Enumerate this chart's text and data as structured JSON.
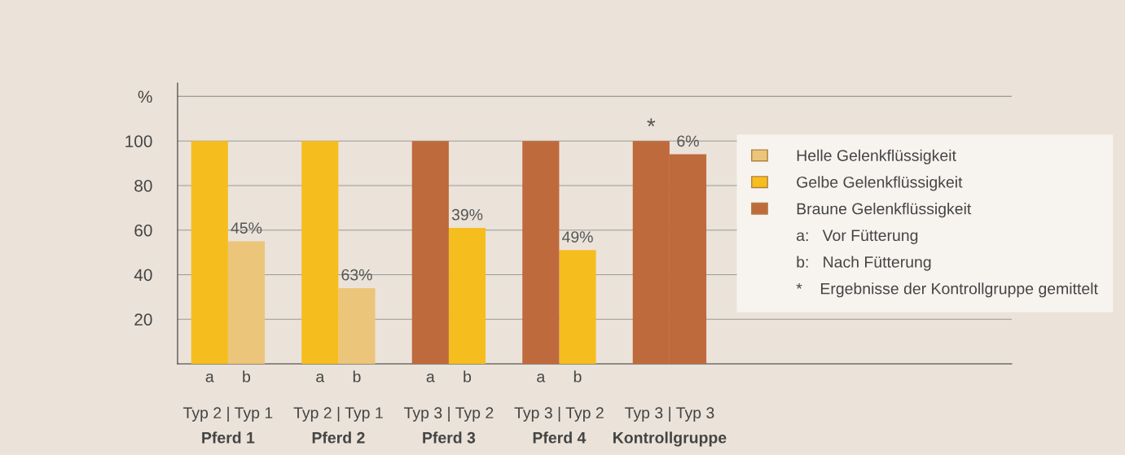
{
  "chart_data": {
    "type": "bar",
    "categories": [
      "a",
      "b",
      "a",
      "b",
      "a",
      "b",
      "a",
      "b",
      null,
      null
    ],
    "series": [
      {
        "name": "Helle Gelenkflüssigkeit",
        "color": "#ebc57a",
        "values": [
          null,
          55,
          null,
          34,
          null,
          null,
          null,
          null,
          null,
          null
        ]
      },
      {
        "name": "Gelbe Gelenkflüssigkeit",
        "color": "#f6bd1e",
        "values": [
          100,
          null,
          100,
          null,
          null,
          61,
          null,
          51,
          null,
          null
        ]
      },
      {
        "name": "Braune Gelenkflüssigkeit",
        "color": "#bf6a3c",
        "values": [
          null,
          null,
          null,
          null,
          100,
          null,
          100,
          null,
          100,
          94
        ]
      }
    ],
    "ylim": [
      0,
      126
    ],
    "yticks": [
      20,
      40,
      60,
      80,
      100,
      {
        "value": 120,
        "label": "%"
      }
    ],
    "grid": "y",
    "legend": "right",
    "annotations": [
      "Typ 2 | Typ 1",
      "Typ 2 | Typ 1",
      "Typ 3 | Typ 2",
      "Typ 3 | Typ 2",
      "Typ 3 | Typ 3",
      "Pferd 1",
      "Pferd 2",
      "Pferd 3",
      "Pferd 4",
      "Kontrollgruppe",
      "45%",
      "63%",
      "39%",
      "49%",
      "6%",
      "*",
      "a:   Vor Fütterung",
      "b:   Nach Fütterung",
      "*    Ergebnisse der Kontrollgruppe gemittelt"
    ]
  }
}
